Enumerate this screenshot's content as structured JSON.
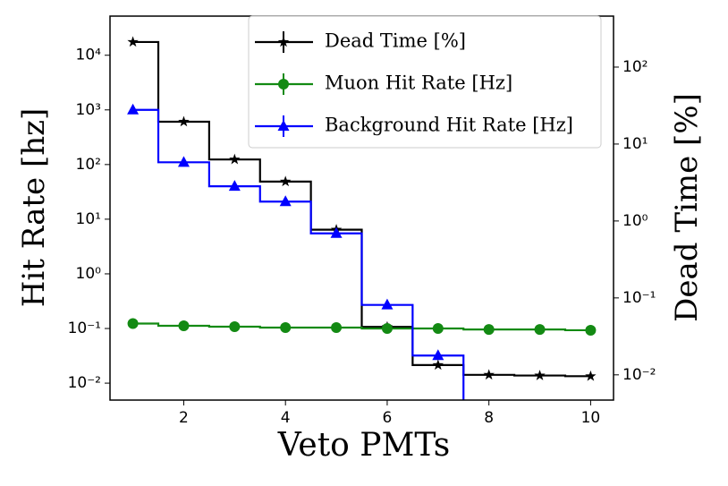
{
  "chart_data": {
    "type": "step",
    "xlabel": "Veto PMTs",
    "ylabel": "Hit Rate [hz]",
    "y2label": "Dead Time [%]",
    "x": [
      1,
      2,
      3,
      4,
      5,
      6,
      7,
      8,
      9,
      10
    ],
    "xlim": [
      0.55,
      10.45
    ],
    "xticks": [
      2,
      4,
      6,
      8,
      10
    ],
    "yscale": "log",
    "ylim": [
      0.0049,
      52000
    ],
    "yticks": [
      {
        "value": 0.01,
        "label": "10⁻²"
      },
      {
        "value": 0.1,
        "label": "10⁻¹"
      },
      {
        "value": 1,
        "label": "10⁰"
      },
      {
        "value": 10,
        "label": "10¹"
      },
      {
        "value": 100,
        "label": "10²"
      },
      {
        "value": 1000,
        "label": "10³"
      },
      {
        "value": 10000,
        "label": "10⁴"
      }
    ],
    "y2scale": "log",
    "y2lim": [
      0.0047,
      460
    ],
    "y2ticks": [
      {
        "value": 0.01,
        "label": "10⁻²"
      },
      {
        "value": 0.1,
        "label": "10⁻¹"
      },
      {
        "value": 1,
        "label": "10⁰"
      },
      {
        "value": 10,
        "label": "10¹"
      },
      {
        "value": 100,
        "label": "10²"
      }
    ],
    "legend": "upper right",
    "series": [
      {
        "name": "Dead Time [%]",
        "color": "#000000",
        "marker": "star",
        "axis": "y2",
        "values": [
          212,
          19.5,
          6.3,
          3.25,
          0.77,
          0.042,
          0.0134,
          0.01,
          0.0098,
          0.0096
        ]
      },
      {
        "name": "Muon Hit Rate [Hz]",
        "color": "#138a13",
        "marker": "circle",
        "values": [
          0.123,
          0.112,
          0.108,
          0.104,
          0.104,
          0.1,
          0.1,
          0.096,
          0.096,
          0.093
        ]
      },
      {
        "name": "Background Hit Rate [Hz]",
        "color": "#0000ff",
        "marker": "triangle",
        "values": [
          1000,
          110,
          40,
          21,
          5.5,
          0.27,
          0.032,
          0,
          0,
          0
        ]
      }
    ]
  }
}
